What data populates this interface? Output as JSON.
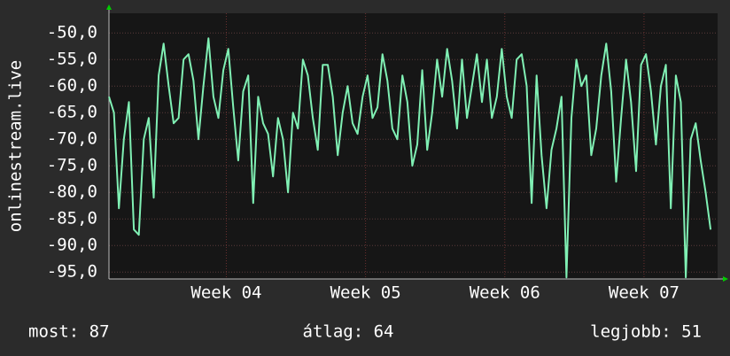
{
  "chart_data": {
    "type": "line",
    "ylabel": "onlinestream.live",
    "xlim": [
      0,
      30.6
    ],
    "xticks": [
      {
        "value": 5.9,
        "label": "Week 04"
      },
      {
        "value": 12.9,
        "label": "Week 05"
      },
      {
        "value": 19.9,
        "label": "Week 06"
      },
      {
        "value": 26.9,
        "label": "Week 07"
      }
    ],
    "ylim": [
      -96.3,
      -46.3
    ],
    "yticks": [
      {
        "value": -50,
        "label": "-50,0"
      },
      {
        "value": -55,
        "label": "-55,0"
      },
      {
        "value": -60,
        "label": "-60,0"
      },
      {
        "value": -65,
        "label": "-65,0"
      },
      {
        "value": -70,
        "label": "-70,0"
      },
      {
        "value": -75,
        "label": "-75,0"
      },
      {
        "value": -80,
        "label": "-80,0"
      },
      {
        "value": -85,
        "label": "-85,0"
      },
      {
        "value": -90,
        "label": "-90,0"
      },
      {
        "value": -95,
        "label": "-95,0"
      }
    ],
    "grid": true,
    "color": "#80f0b4",
    "x": [
      0,
      0.25,
      0.5,
      0.75,
      1,
      1.25,
      1.5,
      1.75,
      2,
      2.25,
      2.5,
      2.75,
      3,
      3.25,
      3.5,
      3.75,
      4,
      4.25,
      4.5,
      4.75,
      5,
      5.25,
      5.5,
      5.75,
      6,
      6.25,
      6.5,
      6.75,
      7,
      7.25,
      7.5,
      7.75,
      8,
      8.25,
      8.5,
      8.75,
      9,
      9.25,
      9.5,
      9.75,
      10,
      10.25,
      10.5,
      10.75,
      11,
      11.25,
      11.5,
      11.75,
      12,
      12.25,
      12.5,
      12.75,
      13,
      13.25,
      13.5,
      13.75,
      14,
      14.25,
      14.5,
      14.75,
      15,
      15.25,
      15.5,
      15.75,
      16,
      16.25,
      16.5,
      16.75,
      17,
      17.25,
      17.5,
      17.75,
      18,
      18.25,
      18.5,
      18.75,
      19,
      19.25,
      19.5,
      19.75,
      20,
      20.25,
      20.5,
      20.75,
      21,
      21.25,
      21.5,
      21.75,
      22,
      22.25,
      22.5,
      22.75,
      23,
      23.25,
      23.5,
      23.75,
      24,
      24.25,
      24.5,
      24.75,
      25,
      25.25,
      25.5,
      25.75,
      26,
      26.25,
      26.5,
      26.75,
      27,
      27.25,
      27.5,
      27.75,
      28,
      28.25,
      28.5,
      28.75,
      29,
      29.25,
      29.5,
      29.75,
      30,
      30.25
    ],
    "values": [
      -62,
      -65,
      -83,
      -70,
      -63,
      -87,
      -88,
      -70,
      -66,
      -81,
      -58,
      -52,
      -60,
      -67,
      -66,
      -55,
      -54,
      -59,
      -70,
      -60,
      -51,
      -62,
      -66,
      -57,
      -53,
      -64,
      -74,
      -61,
      -58,
      -82,
      -62,
      -67,
      -69,
      -77,
      -66,
      -70,
      -80,
      -65,
      -68,
      -55,
      -58,
      -66,
      -72,
      -56,
      -56,
      -62,
      -73,
      -65,
      -60,
      -67,
      -69,
      -62,
      -58,
      -66,
      -64,
      -54,
      -59,
      -68,
      -70,
      -58,
      -63,
      -75,
      -71,
      -57,
      -72,
      -65,
      -55,
      -62,
      -53,
      -59,
      -68,
      -55,
      -66,
      -60,
      -54,
      -63,
      -55,
      -66,
      -62,
      -53,
      -62,
      -66,
      -55,
      -54,
      -60,
      -82,
      -58,
      -73,
      -83,
      -72,
      -68,
      -62,
      -96,
      -66,
      -55,
      -60,
      -58,
      -73,
      -68,
      -58,
      -52,
      -61,
      -78,
      -66,
      -55,
      -63,
      -76,
      -56,
      -54,
      -61,
      -71,
      -60,
      -56,
      -83,
      -58,
      -63,
      -96,
      -70,
      -67,
      -74,
      -80,
      -87
    ],
    "footer": {
      "current": "most: 87",
      "average": "átlag: 64",
      "best": "legjobb: 51"
    }
  }
}
